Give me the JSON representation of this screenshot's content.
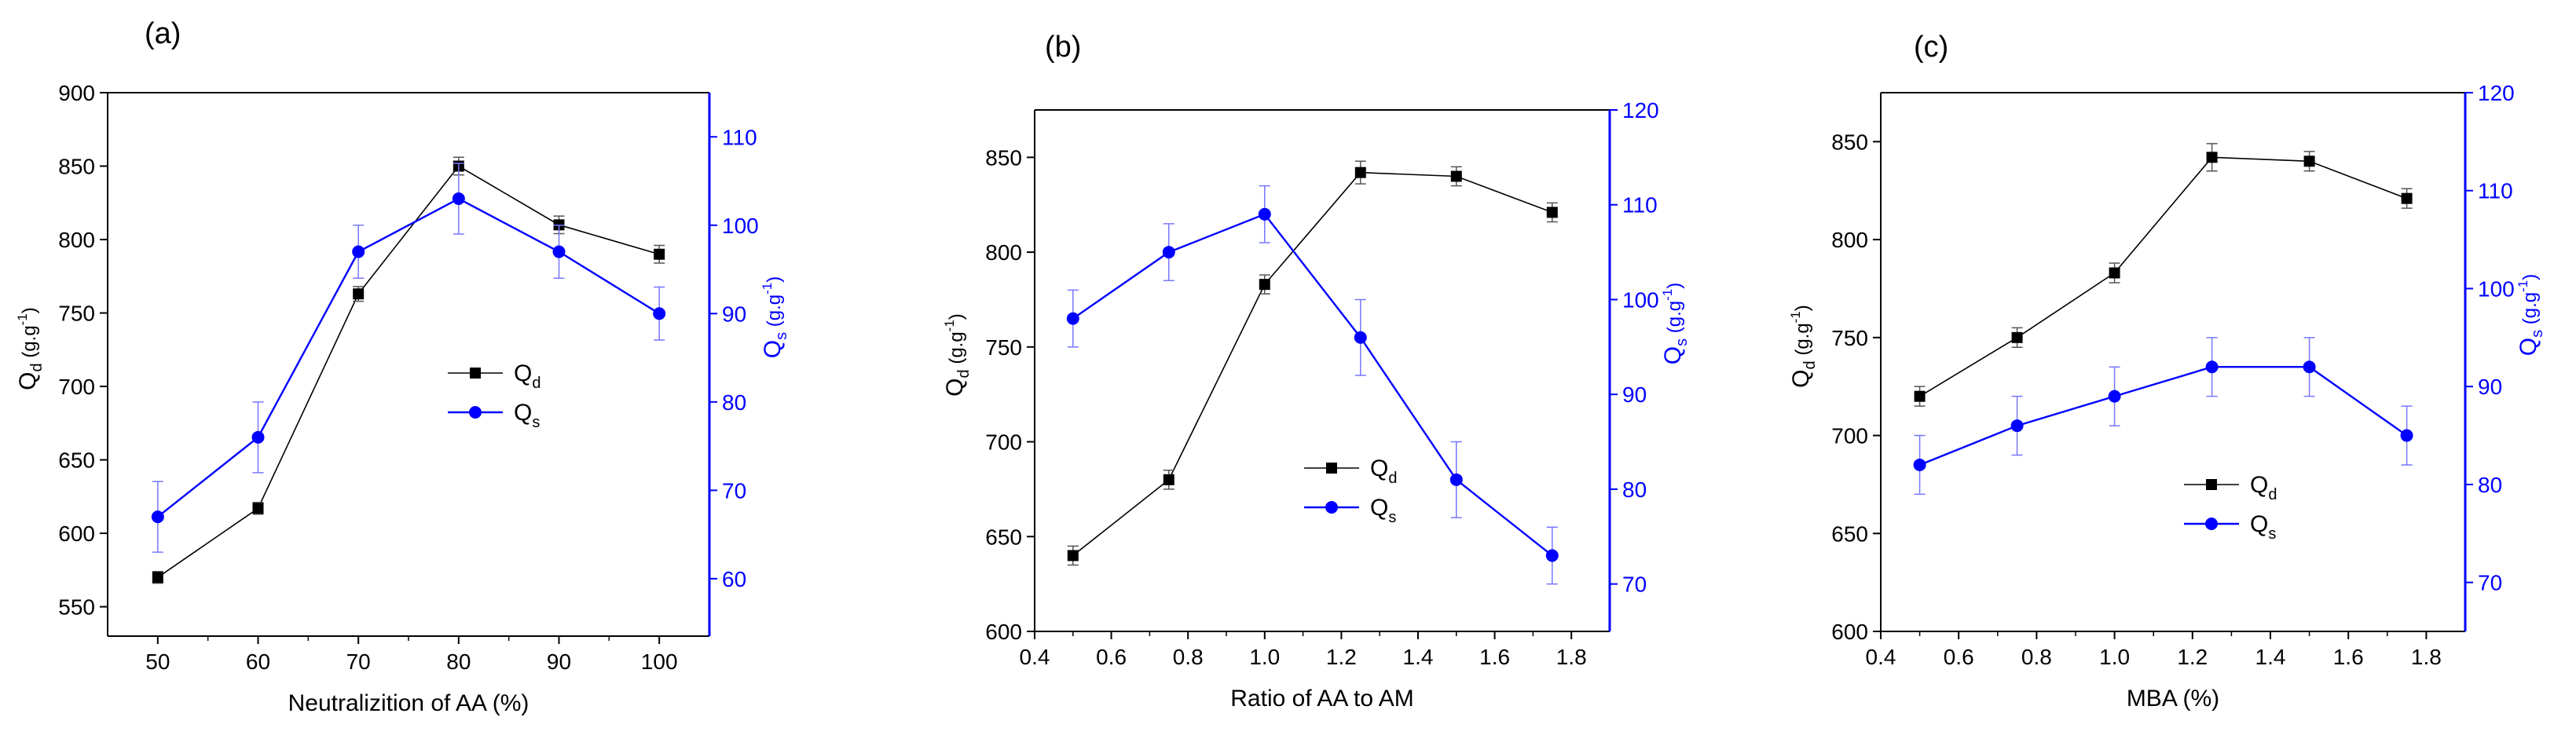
{
  "colors": {
    "qd": "#000000",
    "qs": "#0000ff",
    "axis": "#000000"
  },
  "chart_data": [
    {
      "type": "line",
      "panel_label": "(a)",
      "xlabel": "Neutralizition of AA (%)",
      "ylabel_left": {
        "main": "Q",
        "sub": "d",
        "unit": " (g.g",
        "exp": "-1",
        "close": ")"
      },
      "ylabel_right": {
        "main": "Q",
        "sub": "s",
        "unit": " (g.g",
        "exp": "-1",
        "close": ")"
      },
      "xlim": [
        45,
        105
      ],
      "xticks": [
        50,
        60,
        70,
        80,
        90,
        100
      ],
      "xtick_labels": [
        "50",
        "60",
        "70",
        "80",
        "90",
        "100"
      ],
      "ylim_left": [
        530,
        900
      ],
      "yticks_left": [
        550,
        600,
        650,
        700,
        750,
        800,
        850,
        900
      ],
      "ylim_right": [
        53.5,
        115
      ],
      "yticks_right": [
        60,
        70,
        80,
        90,
        100,
        110
      ],
      "legend": {
        "position": "center-right",
        "entries": [
          {
            "main": "Q",
            "sub": "d"
          },
          {
            "main": "Q",
            "sub": "s"
          }
        ]
      },
      "series": [
        {
          "name": "Qd",
          "axis": "left",
          "marker": "square",
          "x": [
            50,
            60,
            70,
            80,
            90,
            100
          ],
          "values": [
            570,
            617,
            763,
            850,
            810,
            790
          ],
          "errors": [
            4,
            4,
            5,
            6,
            6,
            6
          ]
        },
        {
          "name": "Qs",
          "axis": "right",
          "marker": "circle",
          "x": [
            50,
            60,
            70,
            80,
            90,
            100
          ],
          "values": [
            67,
            76,
            97,
            103,
            97,
            90
          ],
          "errors": [
            4,
            4,
            3,
            4,
            3,
            3
          ]
        }
      ]
    },
    {
      "type": "line",
      "panel_label": "(b)",
      "xlabel": "Ratio of AA to AM",
      "ylabel_left": {
        "main": "Q",
        "sub": "d",
        "unit": " (g.g",
        "exp": "-1",
        "close": ")"
      },
      "ylabel_right": {
        "main": "Q",
        "sub": "s",
        "unit": " (g.g",
        "exp": "-1",
        "close": ")"
      },
      "xlim": [
        0.4,
        1.9
      ],
      "xticks": [
        0.4,
        0.6,
        0.8,
        1.0,
        1.2,
        1.4,
        1.6,
        1.8
      ],
      "xtick_labels": [
        "0.4",
        "0.6",
        "0.8",
        "1.0",
        "1.2",
        "1.4",
        "1.6",
        "1.8"
      ],
      "ylim_left": [
        600,
        875
      ],
      "yticks_left": [
        600,
        650,
        700,
        750,
        800,
        850
      ],
      "ylim_right": [
        65,
        120
      ],
      "yticks_right": [
        70,
        80,
        90,
        100,
        110,
        120
      ],
      "legend": {
        "position": "lower-right",
        "entries": [
          {
            "main": "Q",
            "sub": "d"
          },
          {
            "main": "Q",
            "sub": "s"
          }
        ]
      },
      "series": [
        {
          "name": "Qd",
          "axis": "left",
          "marker": "square",
          "x": [
            0.5,
            0.75,
            1.0,
            1.25,
            1.5,
            1.75
          ],
          "values": [
            640,
            680,
            783,
            842,
            840,
            821
          ],
          "errors": [
            5,
            5,
            5,
            6,
            5,
            5
          ]
        },
        {
          "name": "Qs",
          "axis": "right",
          "marker": "circle",
          "x": [
            0.5,
            0.75,
            1.0,
            1.25,
            1.5,
            1.75
          ],
          "values": [
            98,
            105,
            109,
            96,
            81,
            73
          ],
          "errors": [
            3,
            3,
            3,
            4,
            4,
            3
          ]
        }
      ]
    },
    {
      "type": "line",
      "panel_label": "(c)",
      "xlabel": "MBA (%)",
      "ylabel_left": {
        "main": "Q",
        "sub": "d",
        "unit": " (g.g",
        "exp": "-1",
        "close": ")"
      },
      "ylabel_right": {
        "main": "Q",
        "sub": "s",
        "unit": " (g.g",
        "exp": "-1",
        "close": ")"
      },
      "xlim": [
        0.4,
        1.9
      ],
      "xticks": [
        0.4,
        0.6,
        0.8,
        1.0,
        1.2,
        1.4,
        1.6,
        1.8
      ],
      "xtick_labels": [
        "0.4",
        "0.6",
        "0.8",
        "1.0",
        "1.2",
        "1.4",
        "1.6",
        "1.8"
      ],
      "ylim_left": [
        600,
        875
      ],
      "yticks_left": [
        600,
        650,
        700,
        750,
        800,
        850
      ],
      "ylim_right": [
        65,
        120
      ],
      "yticks_right": [
        70,
        80,
        90,
        100,
        110,
        120
      ],
      "legend": {
        "position": "center-right",
        "entries": [
          {
            "main": "Q",
            "sub": "d"
          },
          {
            "main": "Q",
            "sub": "s"
          }
        ]
      },
      "series": [
        {
          "name": "Qd",
          "axis": "left",
          "marker": "square",
          "x": [
            0.5,
            0.75,
            1.0,
            1.25,
            1.5,
            1.75
          ],
          "values": [
            720,
            750,
            783,
            842,
            840,
            821
          ],
          "errors": [
            5,
            5,
            5,
            7,
            5,
            5
          ]
        },
        {
          "name": "Qs",
          "axis": "right",
          "marker": "circle",
          "x": [
            0.5,
            0.75,
            1.0,
            1.25,
            1.5,
            1.75
          ],
          "values": [
            82,
            86,
            89,
            92,
            92,
            85
          ],
          "errors": [
            3,
            3,
            3,
            3,
            3,
            3
          ]
        }
      ]
    }
  ]
}
